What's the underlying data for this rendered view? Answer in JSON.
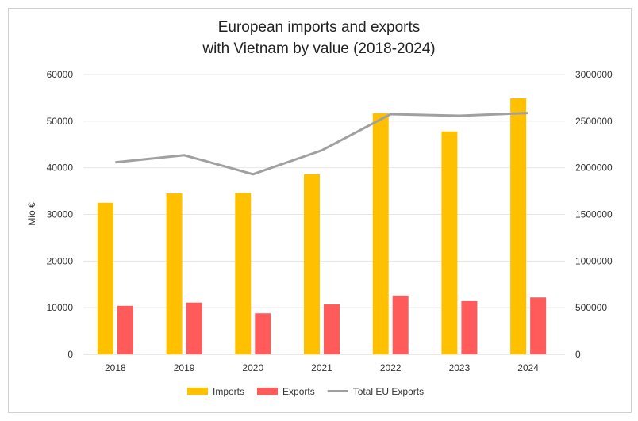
{
  "chart_data": {
    "type": "bar",
    "title_line1": "European imports and exports",
    "title_line2": "with Vietnam by value (2018-2024)",
    "ylabel": "Mio €",
    "categories": [
      "2018",
      "2019",
      "2020",
      "2021",
      "2022",
      "2023",
      "2024"
    ],
    "ylim": [
      0,
      60000
    ],
    "y_ticks": [
      "0",
      "10000",
      "20000",
      "30000",
      "40000",
      "50000",
      "60000"
    ],
    "y2lim": [
      0,
      3000000
    ],
    "y2_ticks": [
      "0",
      "500000",
      "1000000",
      "1500000",
      "2000000",
      "2500000",
      "3000000"
    ],
    "grid": true,
    "legend_position": "bottom",
    "series": [
      {
        "name": "Imports",
        "type": "bar",
        "axis": "left",
        "color": "#FFC000",
        "values": [
          32500,
          34500,
          34600,
          38600,
          51700,
          47800,
          54900
        ]
      },
      {
        "name": "Exports",
        "type": "bar",
        "axis": "left",
        "color": "#FF5B5B",
        "values": [
          10400,
          11100,
          8800,
          10700,
          12600,
          11400,
          12200
        ]
      },
      {
        "name": "Total EU Exports",
        "type": "line",
        "axis": "right",
        "color": "#A0A0A0",
        "values": [
          2059000,
          2135000,
          1931000,
          2187000,
          2575000,
          2558000,
          2587000
        ]
      }
    ]
  }
}
